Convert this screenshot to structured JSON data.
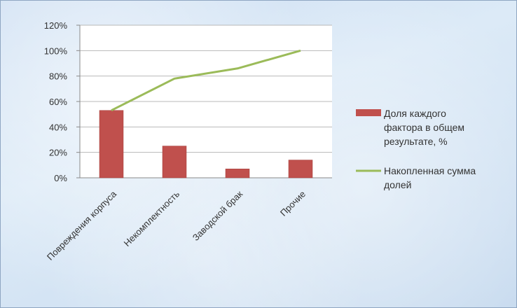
{
  "chart_data": {
    "type": "bar",
    "categories": [
      "Повреждения корпуса",
      "Некомплектность",
      "Заводской брак",
      "Прочие"
    ],
    "y_ticks": [
      "0%",
      "20%",
      "40%",
      "60%",
      "80%",
      "100%",
      "120%"
    ],
    "ylim": [
      0,
      120
    ],
    "grid": true,
    "legend_position": "right",
    "series": [
      {
        "name": "Доля каждого фактора в общем результате, %",
        "legend_lines": [
          "Доля  каждого",
          "фактора в общем",
          "результате, %"
        ],
        "type": "bar",
        "color": "#c0504d",
        "values": [
          53,
          25,
          7,
          14
        ]
      },
      {
        "name": "Накопленная сумма долей",
        "legend_lines": [
          "Накопленная сумма",
          "долей"
        ],
        "type": "line",
        "color": "#9bbb59",
        "values": [
          53,
          78,
          86,
          100
        ]
      }
    ]
  }
}
